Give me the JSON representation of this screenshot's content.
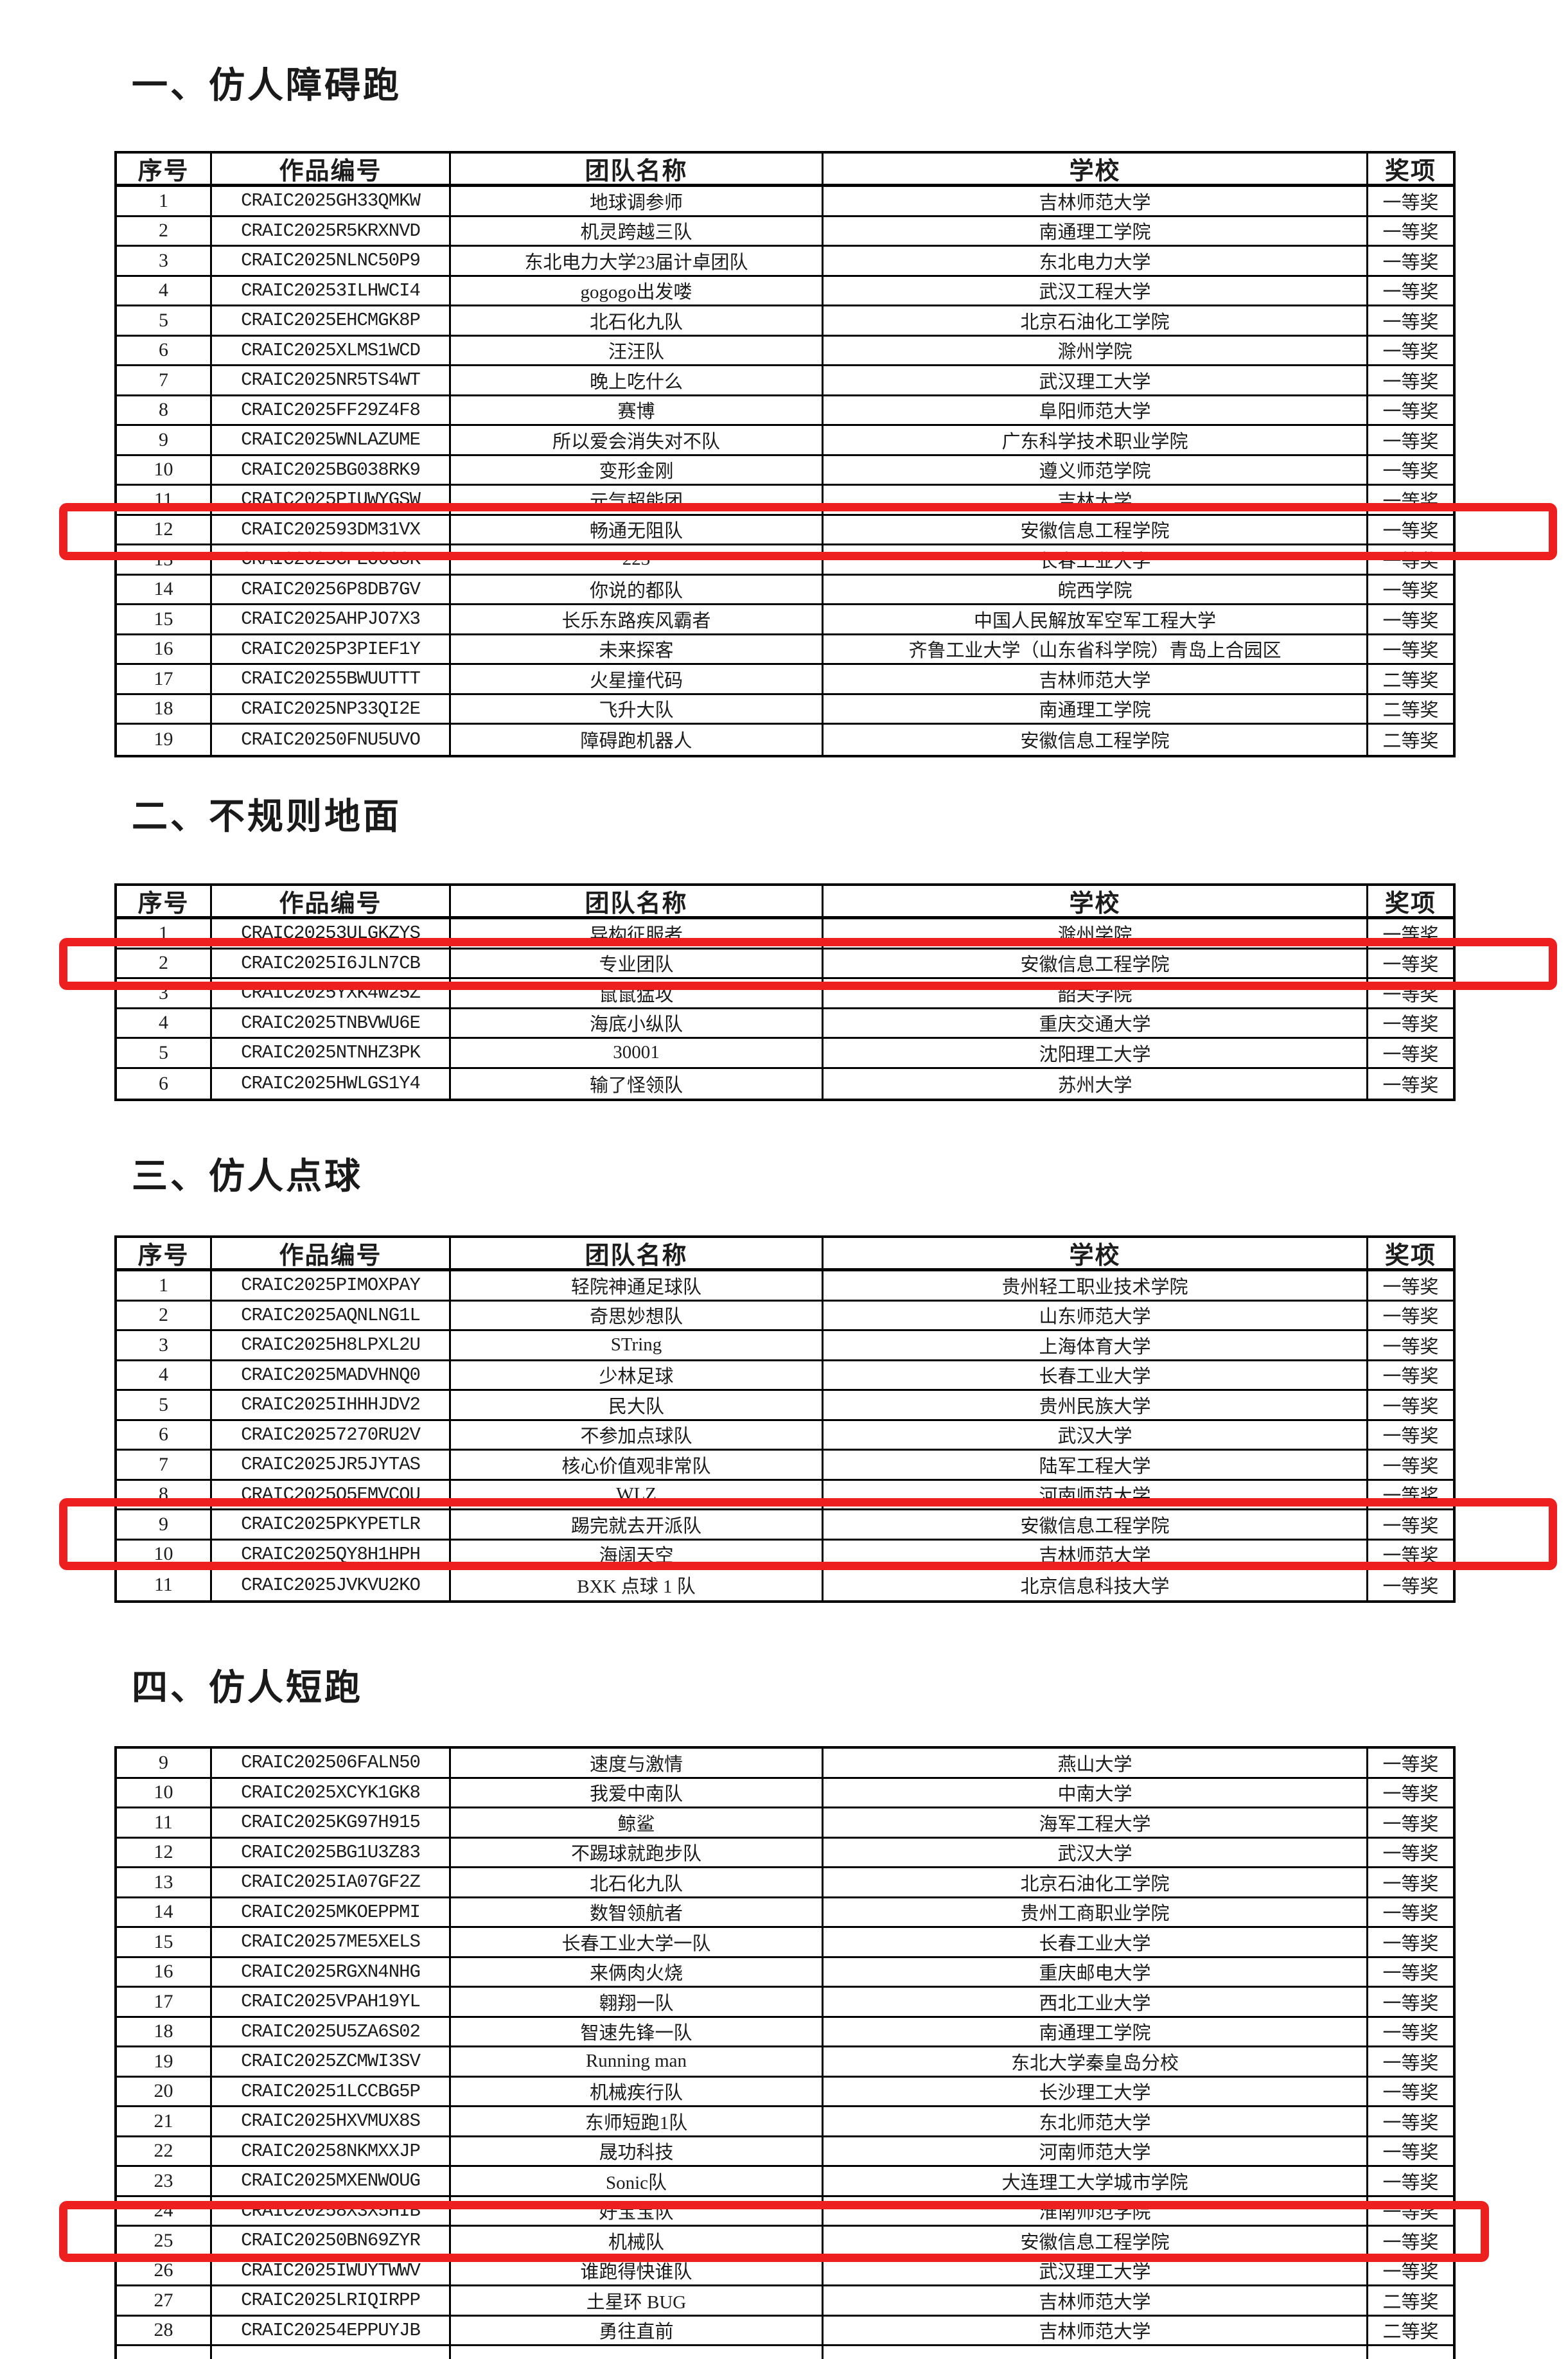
{
  "page": {
    "background_color": "#ffffff",
    "table_border_color": "#000000",
    "highlight_color": "#ee1f1f"
  },
  "columns": [
    "序号",
    "作品编号",
    "团队名称",
    "学校",
    "奖项"
  ],
  "awards": {
    "first": "一等奖",
    "second": "二等奖"
  },
  "sections": [
    {
      "title": "一、仿人障碍跑",
      "show_header": true,
      "highlight_rows": [
        12
      ],
      "partial_row": false,
      "rows": [
        [
          "1",
          "CRAIC2025GH33QMKW",
          "地球调参师",
          "吉林师范大学",
          "一等奖"
        ],
        [
          "2",
          "CRAIC2025R5KRXNVD",
          "机灵跨越三队",
          "南通理工学院",
          "一等奖"
        ],
        [
          "3",
          "CRAIC2025NLNC50P9",
          "东北电力大学23届计卓团队",
          "东北电力大学",
          "一等奖"
        ],
        [
          "4",
          "CRAIC20253ILHWCI4",
          "gogogo出发喽",
          "武汉工程大学",
          "一等奖"
        ],
        [
          "5",
          "CRAIC2025EHCMGK8P",
          "北石化九队",
          "北京石油化工学院",
          "一等奖"
        ],
        [
          "6",
          "CRAIC2025XLMS1WCD",
          "汪汪队",
          "滁州学院",
          "一等奖"
        ],
        [
          "7",
          "CRAIC2025NR5TS4WT",
          "晚上吃什么",
          "武汉理工大学",
          "一等奖"
        ],
        [
          "8",
          "CRAIC2025FF29Z4F8",
          "赛博",
          "阜阳师范大学",
          "一等奖"
        ],
        [
          "9",
          "CRAIC2025WNLAZUME",
          "所以爱会消失对不队",
          "广东科学技术职业学院",
          "一等奖"
        ],
        [
          "10",
          "CRAIC2025BG038RK9",
          "变形金刚",
          "遵义师范学院",
          "一等奖"
        ],
        [
          "11",
          "CRAIC2025PIUWYGSW",
          "元气超能团",
          "吉林大学",
          "一等奖"
        ],
        [
          "12",
          "CRAIC202593DM31VX",
          "畅通无阻队",
          "安徽信息工程学院",
          "一等奖"
        ],
        [
          "13",
          "CRAIC2025CPEO6G8K",
          "223",
          "长春工业大学",
          "一等奖"
        ],
        [
          "14",
          "CRAIC20256P8DB7GV",
          "你说的都队",
          "皖西学院",
          "一等奖"
        ],
        [
          "15",
          "CRAIC2025AHPJO7X3",
          "长乐东路疾风霸者",
          "中国人民解放军空军工程大学",
          "一等奖"
        ],
        [
          "16",
          "CRAIC2025P3PIEF1Y",
          "未来探客",
          "齐鲁工业大学（山东省科学院）青岛上合园区",
          "一等奖"
        ],
        [
          "17",
          "CRAIC20255BWUUTTT",
          "火星撞代码",
          "吉林师范大学",
          "二等奖"
        ],
        [
          "18",
          "CRAIC2025NP33QI2E",
          "飞升大队",
          "南通理工学院",
          "二等奖"
        ],
        [
          "19",
          "CRAIC20250FNU5UVO",
          "障碍跑机器人",
          "安徽信息工程学院",
          "二等奖"
        ]
      ]
    },
    {
      "title": "二、不规则地面",
      "show_header": true,
      "highlight_rows": [
        2
      ],
      "partial_row": false,
      "rows": [
        [
          "1",
          "CRAIC20253ULGKZYS",
          "异构征服者",
          "滁州学院",
          "一等奖"
        ],
        [
          "2",
          "CRAIC2025I6JLN7CB",
          "专业团队",
          "安徽信息工程学院",
          "一等奖"
        ],
        [
          "3",
          "CRAIC2025YXK4W25Z",
          "鼠鼠猛攻",
          "韶关学院",
          "一等奖"
        ],
        [
          "4",
          "CRAIC2025TNBVWU6E",
          "海底小纵队",
          "重庆交通大学",
          "一等奖"
        ],
        [
          "5",
          "CRAIC2025NTNHZ3PK",
          "30001",
          "沈阳理工大学",
          "一等奖"
        ],
        [
          "6",
          "CRAIC2025HWLGS1Y4",
          "输了怪领队",
          "苏州大学",
          "一等奖"
        ]
      ]
    },
    {
      "title": "三、仿人点球",
      "show_header": true,
      "highlight_rows": [
        9
      ],
      "partial_row": false,
      "rows": [
        [
          "1",
          "CRAIC2025PIMOXPAY",
          "轻院神通足球队",
          "贵州轻工职业技术学院",
          "一等奖"
        ],
        [
          "2",
          "CRAIC2025AQNLNG1L",
          "奇思妙想队",
          "山东师范大学",
          "一等奖"
        ],
        [
          "3",
          "CRAIC2025H8LPXL2U",
          "STring",
          "上海体育大学",
          "一等奖"
        ],
        [
          "4",
          "CRAIC2025MADVHNQ0",
          "少林足球",
          "长春工业大学",
          "一等奖"
        ],
        [
          "5",
          "CRAIC2025IHHHJDV2",
          "民大队",
          "贵州民族大学",
          "一等奖"
        ],
        [
          "6",
          "CRAIC20257270RU2V",
          "不参加点球队",
          "武汉大学",
          "一等奖"
        ],
        [
          "7",
          "CRAIC2025JR5JYTAS",
          "核心价值观非常队",
          "陆军工程大学",
          "一等奖"
        ],
        [
          "8",
          "CRAIC2025Q5EMVCQU",
          "WLZ",
          "河南师范大学",
          "一等奖"
        ],
        [
          "9",
          "CRAIC2025PKYPETLR",
          "踢完就去开派队",
          "安徽信息工程学院",
          "一等奖"
        ],
        [
          "10",
          "CRAIC2025QY8H1HPH",
          "海阔天空",
          "吉林师范大学",
          "一等奖"
        ],
        [
          "11",
          "CRAIC2025JVKVU2KO",
          "BXK 点球 1 队",
          "北京信息科技大学",
          "一等奖"
        ]
      ]
    },
    {
      "title": "四、仿人短跑",
      "show_header": false,
      "highlight_rows": [
        25
      ],
      "partial_row": true,
      "rows": [
        [
          "9",
          "CRAIC202506FALN50",
          "速度与激情",
          "燕山大学",
          "一等奖"
        ],
        [
          "10",
          "CRAIC2025XCYK1GK8",
          "我爱中南队",
          "中南大学",
          "一等奖"
        ],
        [
          "11",
          "CRAIC2025KG97H915",
          "鲸鲨",
          "海军工程大学",
          "一等奖"
        ],
        [
          "12",
          "CRAIC2025BG1U3Z83",
          "不踢球就跑步队",
          "武汉大学",
          "一等奖"
        ],
        [
          "13",
          "CRAIC2025IA07GF2Z",
          "北石化九队",
          "北京石油化工学院",
          "一等奖"
        ],
        [
          "14",
          "CRAIC2025MKOEPPMI",
          "数智领航者",
          "贵州工商职业学院",
          "一等奖"
        ],
        [
          "15",
          "CRAIC20257ME5XELS",
          "长春工业大学一队",
          "长春工业大学",
          "一等奖"
        ],
        [
          "16",
          "CRAIC2025RGXN4NHG",
          "来俩肉火烧",
          "重庆邮电大学",
          "一等奖"
        ],
        [
          "17",
          "CRAIC2025VPAH19YL",
          "翱翔一队",
          "西北工业大学",
          "一等奖"
        ],
        [
          "18",
          "CRAIC2025U5ZA6S02",
          "智速先锋一队",
          "南通理工学院",
          "一等奖"
        ],
        [
          "19",
          "CRAIC2025ZCMWI3SV",
          "Running man",
          "东北大学秦皇岛分校",
          "一等奖"
        ],
        [
          "20",
          "CRAIC20251LCCBG5P",
          "机械疾行队",
          "长沙理工大学",
          "一等奖"
        ],
        [
          "21",
          "CRAIC2025HXVMUX8S",
          "东师短跑1队",
          "东北师范大学",
          "一等奖"
        ],
        [
          "22",
          "CRAIC20258NKMXXJP",
          "晟功科技",
          "河南师范大学",
          "一等奖"
        ],
        [
          "23",
          "CRAIC2025MXENWOUG",
          "Sonic队",
          "大连理工大学城市学院",
          "一等奖"
        ],
        [
          "24",
          "CRAIC20258X3X5HIB",
          "好宝宝队",
          "淮南师范学院",
          "一等奖"
        ],
        [
          "25",
          "CRAIC20250BN69ZYR",
          "机械队",
          "安徽信息工程学院",
          "一等奖"
        ],
        [
          "26",
          "CRAIC2025IWUYTWWV",
          "谁跑得快谁队",
          "武汉理工大学",
          "一等奖"
        ],
        [
          "27",
          "CRAIC2025LRIQIRPP",
          "土星环 BUG",
          "吉林师范大学",
          "二等奖"
        ],
        [
          "28",
          "CRAIC20254EPPUYJB",
          "勇往直前",
          "吉林师范大学",
          "二等奖"
        ]
      ]
    }
  ]
}
